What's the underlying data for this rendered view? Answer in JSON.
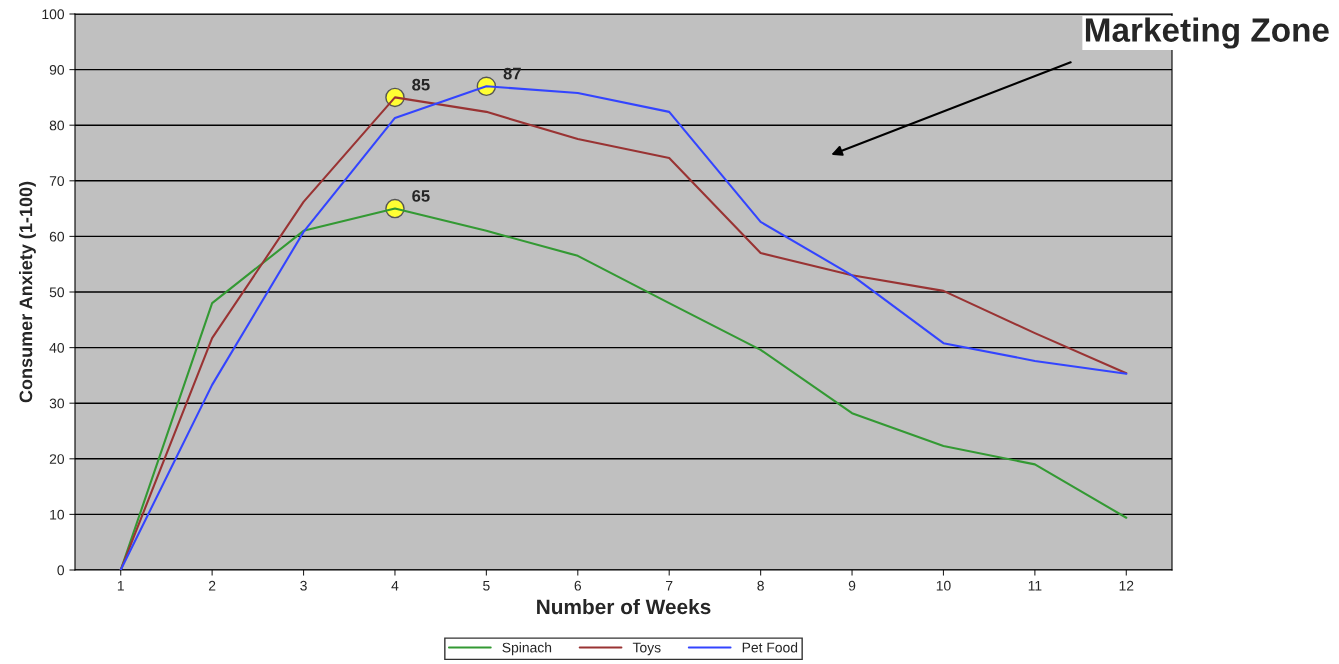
{
  "chart_data": {
    "type": "line",
    "xlabel": "Number of Weeks",
    "ylabel": "Consumer Anxiety (1-100)",
    "categories": [
      "1",
      "2",
      "3",
      "4",
      "5",
      "6",
      "7",
      "8",
      "9",
      "10",
      "11",
      "12"
    ],
    "series": [
      {
        "name": "Spinach",
        "color": "#339933",
        "values": [
          0,
          48,
          61,
          65,
          61,
          56.5,
          48,
          39.6,
          28.2,
          22.3,
          19,
          9.4
        ]
      },
      {
        "name": "Toys",
        "color": "#993333",
        "values": [
          0,
          41.7,
          66.2,
          85,
          82.4,
          77.5,
          74.1,
          57,
          53,
          50.2,
          42.6,
          35.4
        ]
      },
      {
        "name": "Pet Food",
        "color": "#3344ff",
        "values": [
          0,
          33.3,
          60.8,
          81.3,
          87,
          85.8,
          82.4,
          62.6,
          53,
          40.8,
          37.6,
          35.3
        ]
      },
      {
        "type": "scatter",
        "color": "#ffff33",
        "marker": "circle",
        "x": [
          "4",
          "5",
          "4"
        ],
        "values": [
          85,
          87,
          65
        ]
      }
    ],
    "annotations": [
      {
        "text": "85",
        "x": "4",
        "y": 85
      },
      {
        "text": "87",
        "x": "5",
        "y": 87
      },
      {
        "text": "65",
        "x": "4",
        "y": 65
      },
      "Marketing Zone"
    ],
    "ylim": [
      0,
      100
    ],
    "yticks": [
      0,
      10,
      20,
      30,
      40,
      50,
      60,
      70,
      80,
      90,
      100
    ],
    "grid": "y",
    "legend": "bottom",
    "marker": "none",
    "line_style": "solid"
  }
}
